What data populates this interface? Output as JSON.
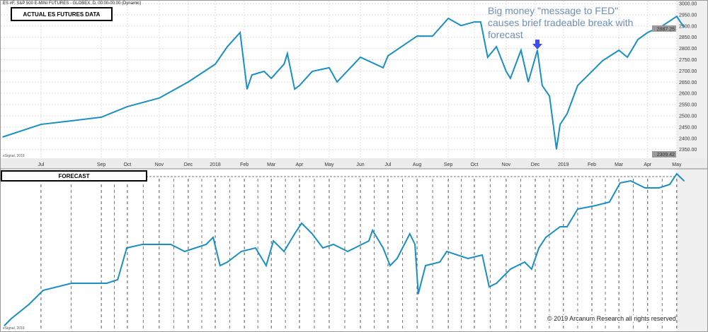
{
  "header": {
    "title": "ES #F, S&P 500 E-MINI FUTURES - GLOBEX, D, 00:00-00:00 (Dynamic)",
    "source_top": "eSignal, 2019",
    "source_bottom": "eSignal, 2019"
  },
  "top_panel_label": "ACTUAL ES FUTURES DATA",
  "bottom_panel_label": "FORECAST",
  "annotation": {
    "line1": "Big money \"message to FED\"",
    "line2": "causes brief tradeable break with",
    "line3": "forecast",
    "arrow_color": "#4050e0"
  },
  "copyright": "© 2019 Arcanum Research all rights reserved",
  "colors": {
    "line": "#1a8fc4",
    "axis_bg": "#e8e8e8",
    "last_price_bg": "#9a9a9a"
  },
  "chart_data": [
    {
      "type": "line",
      "title": "ACTUAL ES FUTURES DATA",
      "xlabel": "",
      "ylabel": "",
      "x_unit": "months since 2017-06",
      "ylim": [
        2340,
        3000
      ],
      "yticks": [
        "3000.00",
        "2950.00",
        "2900.00",
        "2850.00",
        "2800.00",
        "2750.00",
        "2700.00",
        "2650.00",
        "2600.00",
        "2550.00",
        "2500.00",
        "2450.00",
        "2400.00",
        "2350.00"
      ],
      "last_price": "2887.25",
      "low_marker": "2309.42",
      "months": [
        {
          "label": "Jul",
          "t": 1.26
        },
        {
          "label": "Sep",
          "t": 3.25
        },
        {
          "label": "Oct",
          "t": 4.11
        },
        {
          "label": "Nov",
          "t": 5.16
        },
        {
          "label": "Dec",
          "t": 6.12
        },
        {
          "label": "2018",
          "t": 7.01
        },
        {
          "label": "Feb",
          "t": 7.97
        },
        {
          "label": "Mar",
          "t": 8.86
        },
        {
          "label": "Apr",
          "t": 9.79
        },
        {
          "label": "May",
          "t": 10.77
        },
        {
          "label": "Jun",
          "t": 11.8
        },
        {
          "label": "Jul",
          "t": 12.71
        },
        {
          "label": "Aug",
          "t": 13.67
        },
        {
          "label": "Sep",
          "t": 14.7
        },
        {
          "label": "Oct",
          "t": 15.56
        },
        {
          "label": "Nov",
          "t": 16.61
        },
        {
          "label": "Dec",
          "t": 17.57
        },
        {
          "label": "2019",
          "t": 18.5
        },
        {
          "label": "Feb",
          "t": 19.44
        },
        {
          "label": "Mar",
          "t": 20.33
        },
        {
          "label": "Apr",
          "t": 21.28
        },
        {
          "label": "May",
          "t": 22.24
        }
      ],
      "x": [
        0,
        1.26,
        2.27,
        3.25,
        4.11,
        5.16,
        6.12,
        7.01,
        7.41,
        7.83,
        8.06,
        8.22,
        8.62,
        8.86,
        9.28,
        9.39,
        9.63,
        9.79,
        10.21,
        10.77,
        11.03,
        11.8,
        12.55,
        12.71,
        13.67,
        14.18,
        14.7,
        15.12,
        15.56,
        15.77,
        16.0,
        16.29,
        16.61,
        16.75,
        17.1,
        17.34,
        17.64,
        17.8,
        18.04,
        18.27,
        18.39,
        18.62,
        18.97,
        19.44,
        19.79,
        20.33,
        20.61,
        20.96,
        21.28,
        21.78,
        22.24,
        22.36,
        22.48
      ],
      "y": [
        2406,
        2462,
        2478,
        2494,
        2541,
        2579,
        2651,
        2730,
        2808,
        2871,
        2619,
        2682,
        2698,
        2667,
        2730,
        2777,
        2619,
        2635,
        2698,
        2714,
        2651,
        2761,
        2714,
        2767,
        2855,
        2855,
        2934,
        2902,
        2918,
        2918,
        2761,
        2808,
        2698,
        2667,
        2792,
        2651,
        2792,
        2635,
        2588,
        2352,
        2462,
        2509,
        2635,
        2698,
        2745,
        2792,
        2761,
        2840,
        2871,
        2902,
        2943,
        2918,
        2896
      ]
    },
    {
      "type": "line",
      "title": "FORECAST",
      "x_unit": "months since 2017-06",
      "ylim": [
        0,
        230
      ],
      "x": [
        0.05,
        0.28,
        0.86,
        1.33,
        2.27,
        3.43,
        3.79,
        4.09,
        4.6,
        5.54,
        6.0,
        6.71,
        6.94,
        7.17,
        7.41,
        7.87,
        8.34,
        8.69,
        8.93,
        9.28,
        9.63,
        9.86,
        10.21,
        10.56,
        10.91,
        11.38,
        12.08,
        12.2,
        12.55,
        12.78,
        13.01,
        13.43,
        13.6,
        13.71,
        13.95,
        14.42,
        14.65,
        15.35,
        15.82,
        16.05,
        16.29,
        16.75,
        17.22,
        17.45,
        17.69,
        17.92,
        18.39,
        18.62,
        18.97,
        19.56,
        20.02,
        20.37,
        20.72,
        21.19,
        21.66,
        22.01,
        22.24,
        22.48
      ],
      "y": [
        5,
        15,
        35,
        55,
        65,
        65,
        70,
        115,
        120,
        120,
        110,
        120,
        130,
        90,
        95,
        110,
        115,
        90,
        125,
        110,
        135,
        150,
        135,
        115,
        120,
        110,
        125,
        140,
        115,
        90,
        100,
        135,
        120,
        50,
        90,
        95,
        110,
        100,
        105,
        60,
        65,
        85,
        95,
        85,
        115,
        130,
        145,
        145,
        170,
        175,
        180,
        207,
        210,
        200,
        200,
        205,
        220,
        210
      ]
    }
  ]
}
